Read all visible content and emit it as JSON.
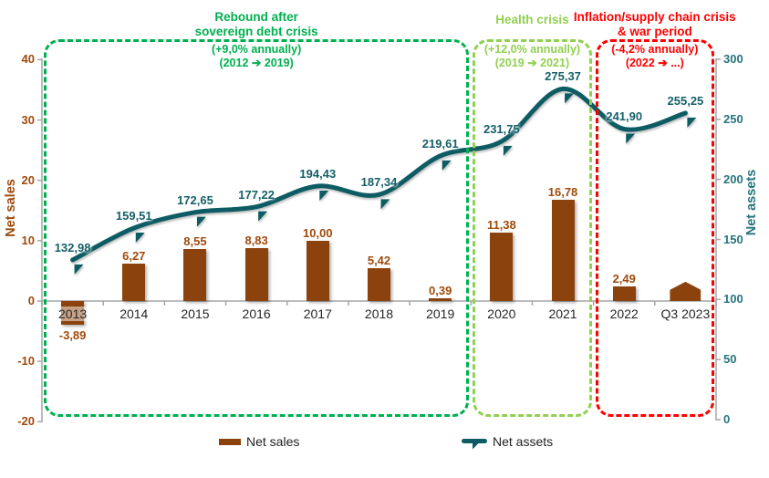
{
  "colors": {
    "bar": "#8C420D",
    "bar_label": "#A04A0A",
    "line": "#0D5C63",
    "line_label": "#145F68",
    "left_axis_text": "#9E4A0C",
    "right_axis_text": "#27747C",
    "category_text": "#262626",
    "axis_line": "#A6A6A6",
    "legend_text": "#1f1f1f"
  },
  "chart_data": {
    "type": "bar+line combo, dual axis",
    "categories": [
      "2013",
      "2014",
      "2015",
      "2016",
      "2017",
      "2018",
      "2019",
      "2020",
      "2021",
      "2022",
      "Q3 2023"
    ],
    "series": [
      {
        "name": "Net sales",
        "type": "bar",
        "axis": "left",
        "values": [
          -3.89,
          6.27,
          8.55,
          8.83,
          10.0,
          5.42,
          0.39,
          11.38,
          16.78,
          2.49,
          null
        ],
        "value_labels": [
          "-3,89",
          "6,27",
          "8,55",
          "8,83",
          "10,00",
          "5,42",
          "0,39",
          "11,38",
          "16,78",
          "2,49",
          null
        ]
      },
      {
        "name": "Net assets",
        "type": "line",
        "axis": "right",
        "values": [
          132.98,
          159.51,
          172.65,
          177.22,
          194.43,
          187.34,
          219.61,
          231.75,
          275.37,
          241.9,
          255.25
        ],
        "value_labels": [
          "132,98",
          "159,51",
          "172,65",
          "177,22",
          "194,43",
          "187,34",
          "219,61",
          "231,75",
          "275,37",
          "241,90",
          "255,25"
        ]
      }
    ],
    "partial_period_marker": {
      "category": "Q3 2023",
      "shape": "pentagon-up",
      "approx_value": 3.2
    },
    "left_axis": {
      "title": "Net sales",
      "min": -20,
      "max": 40,
      "ticks": [
        -20,
        -10,
        0,
        10,
        20,
        30,
        40
      ],
      "tick_labels": [
        "-20",
        "-10",
        "0",
        "10",
        "20",
        "30",
        "40"
      ]
    },
    "right_axis": {
      "title": "Net assets",
      "min": 0,
      "max": 300,
      "ticks": [
        0,
        50,
        100,
        150,
        200,
        250,
        300
      ],
      "tick_labels": [
        "0",
        "50",
        "100",
        "150",
        "200",
        "250",
        "300"
      ]
    },
    "grid": "none",
    "legend_position": "bottom"
  },
  "legend": [
    {
      "label": "Net sales"
    },
    {
      "label": "Net assets"
    }
  ],
  "periods": [
    {
      "title_lines": [
        "Rebound after",
        "sovereign debt crisis"
      ],
      "subtitle_lines": [
        "(+9,0% annually)",
        "(2012 ➔ 2019)"
      ],
      "color": "#00B050",
      "from_category_index": 0,
      "to_category_index": 7
    },
    {
      "title_lines": [
        "Health crisis"
      ],
      "subtitle_lines": [
        "(+12,0% annually)",
        "(2019 ➔ 2021)"
      ],
      "color": "#92D050",
      "from_category_index": 7,
      "to_category_index": 9
    },
    {
      "title_lines": [
        "Inflation/supply chain crisis",
        "& war period"
      ],
      "subtitle_lines": [
        "(-4,2% annually)",
        "(2022 ➔ ...)"
      ],
      "color": "#FF0000",
      "from_category_index": 9,
      "to_category_index": 11
    }
  ]
}
